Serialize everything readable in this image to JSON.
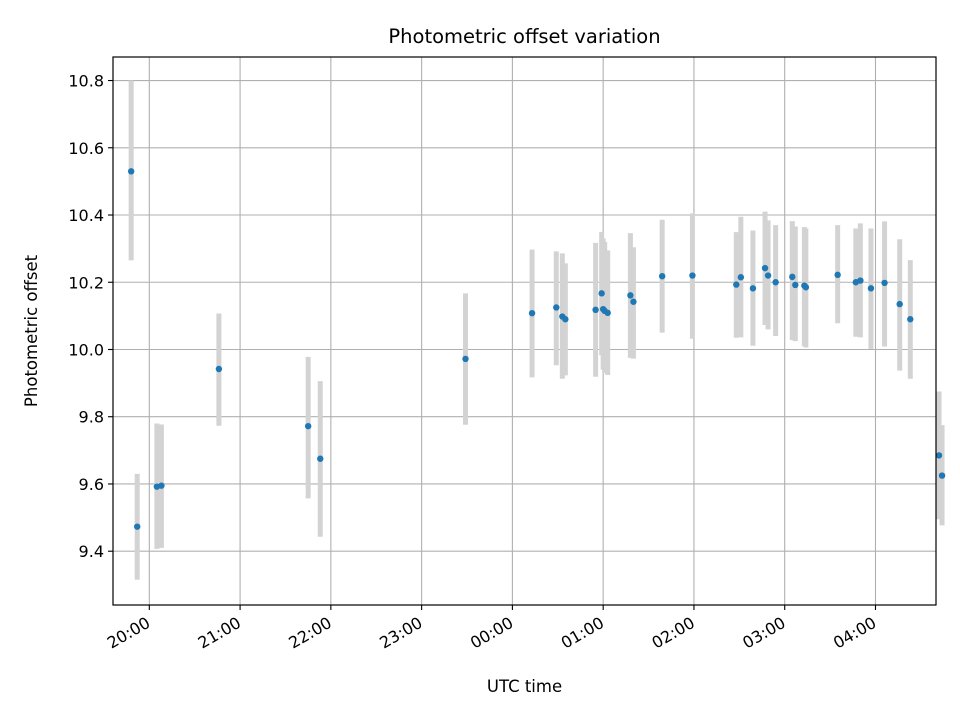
{
  "chart_data": {
    "type": "scatter",
    "title": "Photometric offset variation",
    "xlabel": "UTC time",
    "ylabel": "Photometric offset",
    "xlim": [
      "19:36",
      "04:40"
    ],
    "ylim": [
      9.24,
      10.87
    ],
    "x_ticks": [
      "20:00",
      "21:00",
      "22:00",
      "23:00",
      "00:00",
      "01:00",
      "02:00",
      "03:00",
      "04:00"
    ],
    "y_ticks": [
      "9.4",
      "9.6",
      "9.8",
      "10.0",
      "10.2",
      "10.4",
      "10.6",
      "10.8"
    ],
    "grid": true,
    "errorbar_color": "#d3d3d3",
    "marker_color": "#1f77b4",
    "points": [
      {
        "x": "19:48",
        "y": 10.53,
        "lo": 10.265,
        "hi": 10.8
      },
      {
        "x": "19:52",
        "y": 9.473,
        "lo": 9.315,
        "hi": 9.63
      },
      {
        "x": "20:05",
        "y": 9.592,
        "lo": 9.407,
        "hi": 9.78
      },
      {
        "x": "20:08",
        "y": 9.595,
        "lo": 9.41,
        "hi": 9.777
      },
      {
        "x": "20:46",
        "y": 9.942,
        "lo": 9.773,
        "hi": 10.107
      },
      {
        "x": "21:45",
        "y": 9.772,
        "lo": 9.557,
        "hi": 9.978
      },
      {
        "x": "21:53",
        "y": 9.675,
        "lo": 9.443,
        "hi": 9.906
      },
      {
        "x": "23:29",
        "y": 9.972,
        "lo": 9.776,
        "hi": 10.167
      },
      {
        "x": "00:13",
        "y": 10.108,
        "lo": 9.917,
        "hi": 10.297
      },
      {
        "x": "00:29",
        "y": 10.125,
        "lo": 9.953,
        "hi": 10.292
      },
      {
        "x": "00:33",
        "y": 10.098,
        "lo": 9.913,
        "hi": 10.286
      },
      {
        "x": "00:35",
        "y": 10.09,
        "lo": 9.923,
        "hi": 10.256
      },
      {
        "x": "00:55",
        "y": 10.118,
        "lo": 9.919,
        "hi": 10.317
      },
      {
        "x": "00:59",
        "y": 10.167,
        "lo": 9.983,
        "hi": 10.35
      },
      {
        "x": "01:00",
        "y": 10.12,
        "lo": 9.94,
        "hi": 10.33
      },
      {
        "x": "01:01",
        "y": 10.115,
        "lo": 9.93,
        "hi": 10.32
      },
      {
        "x": "01:03",
        "y": 10.109,
        "lo": 9.924,
        "hi": 10.295
      },
      {
        "x": "01:18",
        "y": 10.161,
        "lo": 9.975,
        "hi": 10.346
      },
      {
        "x": "01:20",
        "y": 10.142,
        "lo": 9.973,
        "hi": 10.304
      },
      {
        "x": "01:39",
        "y": 10.218,
        "lo": 10.05,
        "hi": 10.386
      },
      {
        "x": "01:59",
        "y": 10.22,
        "lo": 10.032,
        "hi": 10.405
      },
      {
        "x": "02:28",
        "y": 10.193,
        "lo": 10.035,
        "hi": 10.349
      },
      {
        "x": "02:31",
        "y": 10.215,
        "lo": 10.036,
        "hi": 10.395
      },
      {
        "x": "02:39",
        "y": 10.182,
        "lo": 10.011,
        "hi": 10.354
      },
      {
        "x": "02:47",
        "y": 10.242,
        "lo": 10.073,
        "hi": 10.41
      },
      {
        "x": "02:49",
        "y": 10.22,
        "lo": 10.06,
        "hi": 10.384
      },
      {
        "x": "02:54",
        "y": 10.2,
        "lo": 10.04,
        "hi": 10.37
      },
      {
        "x": "03:05",
        "y": 10.216,
        "lo": 10.028,
        "hi": 10.382
      },
      {
        "x": "03:07",
        "y": 10.192,
        "lo": 10.025,
        "hi": 10.366
      },
      {
        "x": "03:13",
        "y": 10.19,
        "lo": 10.01,
        "hi": 10.364
      },
      {
        "x": "03:14",
        "y": 10.185,
        "lo": 10.006,
        "hi": 10.36
      },
      {
        "x": "03:35",
        "y": 10.222,
        "lo": 10.078,
        "hi": 10.37
      },
      {
        "x": "03:47",
        "y": 10.2,
        "lo": 10.038,
        "hi": 10.36
      },
      {
        "x": "03:50",
        "y": 10.205,
        "lo": 10.036,
        "hi": 10.375
      },
      {
        "x": "03:57",
        "y": 10.182,
        "lo": 10.002,
        "hi": 10.36
      },
      {
        "x": "04:06",
        "y": 10.198,
        "lo": 10.009,
        "hi": 10.381
      },
      {
        "x": "04:16",
        "y": 10.135,
        "lo": 9.937,
        "hi": 10.328
      },
      {
        "x": "04:23",
        "y": 10.09,
        "lo": 9.913,
        "hi": 10.266
      },
      {
        "x": "04:42",
        "y": 9.685,
        "lo": 9.495,
        "hi": 9.875
      },
      {
        "x": "04:44",
        "y": 9.625,
        "lo": 9.477,
        "hi": 9.775
      }
    ]
  }
}
